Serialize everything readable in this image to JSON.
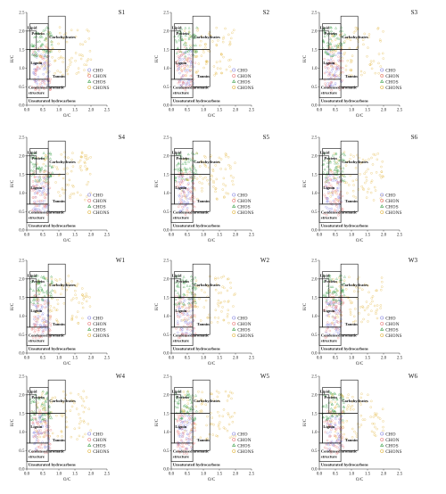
{
  "chart_data": {
    "type": "scatter",
    "layout": "small-multiples",
    "xlabel": "O/C",
    "ylabel": "H/C",
    "xlim": [
      0.0,
      2.5
    ],
    "ylim": [
      0.0,
      2.5
    ],
    "xticks": [
      "0.0",
      "0.5",
      "1.0",
      "1.5",
      "2.0",
      "2.5"
    ],
    "yticks": [
      "0.0",
      "0.5",
      "1.0",
      "1.5",
      "2.0",
      "2.5"
    ],
    "regions": [
      {
        "label": "Lipid",
        "x": [
          0.0,
          0.3
        ],
        "y": [
          1.5,
          2.0
        ]
      },
      {
        "label": "Protein",
        "x": [
          0.1,
          0.67
        ],
        "y": [
          1.5,
          2.2
        ]
      },
      {
        "label": "Carbohydrates",
        "x": [
          0.67,
          1.2
        ],
        "y": [
          1.5,
          2.4
        ]
      },
      {
        "label": "Lignin",
        "x": [
          0.1,
          0.67
        ],
        "y": [
          0.7,
          1.5
        ]
      },
      {
        "label": "Tannin",
        "x": [
          0.67,
          1.2
        ],
        "y": [
          0.5,
          1.5
        ]
      },
      {
        "label": "Condensed aromatic structure",
        "x": [
          0.0,
          0.67
        ],
        "y": [
          0.2,
          0.7
        ]
      },
      {
        "label": "Unsaturated hydrocarbons",
        "x": [
          0.0,
          0.1
        ],
        "y": [
          0.7,
          1.5
        ]
      }
    ],
    "region_label_lines": {
      "condensed": [
        "Condensed aromatic",
        "structure"
      ]
    },
    "series": [
      {
        "name": "CHO",
        "color": "#8080e0",
        "marker": "circle"
      },
      {
        "name": "CHON",
        "color": "#e87070",
        "marker": "circle"
      },
      {
        "name": "CHOS",
        "color": "#3da04a",
        "marker": "triangle"
      },
      {
        "name": "CHONS",
        "color": "#e0b030",
        "marker": "circle"
      }
    ],
    "panels": [
      "S1",
      "S2",
      "S3",
      "S4",
      "S5",
      "S6",
      "W1",
      "W2",
      "W3",
      "W4",
      "W5",
      "W6"
    ],
    "clusters": {
      "CHO": {
        "x": [
          0.2,
          0.7
        ],
        "y": [
          0.5,
          1.5
        ]
      },
      "CHON": {
        "x": [
          0.15,
          0.75
        ],
        "y": [
          0.4,
          1.6
        ]
      },
      "CHOS": {
        "x": [
          0.1,
          0.8
        ],
        "y": [
          1.3,
          2.1
        ]
      },
      "CHONS": {
        "x": [
          0.3,
          2.0
        ],
        "y": [
          0.8,
          2.1
        ]
      }
    }
  }
}
